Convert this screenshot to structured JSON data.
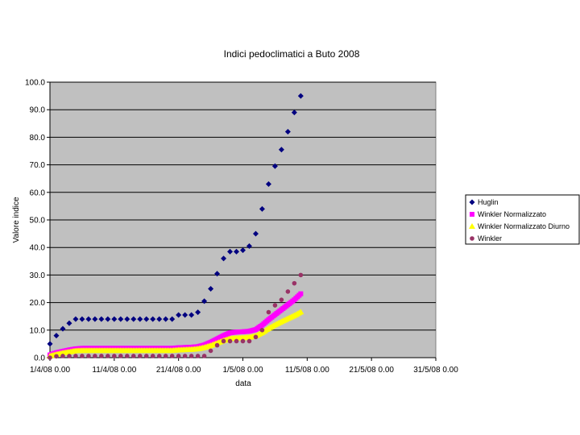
{
  "chart_data": {
    "type": "scatter",
    "title": "Indici pedoclimatici a Buto 2008",
    "xlabel": "data",
    "ylabel": "Valore indice",
    "ylim": [
      0,
      100
    ],
    "xlim": [
      "2008-04-01",
      "2008-05-31"
    ],
    "y_ticks": [
      "0.0",
      "10.0",
      "20.0",
      "30.0",
      "40.0",
      "50.0",
      "60.0",
      "70.0",
      "80.0",
      "90.0",
      "100.0"
    ],
    "x_ticks": [
      {
        "date": "2008-04-01",
        "label": "1/4/08 0.00"
      },
      {
        "date": "2008-04-11",
        "label": "11/4/08 0.00"
      },
      {
        "date": "2008-04-21",
        "label": "21/4/08 0.00"
      },
      {
        "date": "2008-05-01",
        "label": "1/5/08 0.00"
      },
      {
        "date": "2008-05-11",
        "label": "11/5/08 0.00"
      },
      {
        "date": "2008-05-21",
        "label": "21/5/08 0.00"
      },
      {
        "date": "2008-05-31",
        "label": "31/5/08 0.00"
      }
    ],
    "grid": true,
    "plot_background": "#c0c0c0",
    "legend_position": "right",
    "series": [
      {
        "name": "Huglin",
        "color": "#000080",
        "marker": "diamond",
        "points": [
          [
            "2008-04-01",
            5
          ],
          [
            "2008-04-02",
            8
          ],
          [
            "2008-04-03",
            10.5
          ],
          [
            "2008-04-04",
            12.5
          ],
          [
            "2008-04-05",
            14
          ],
          [
            "2008-04-06",
            14
          ],
          [
            "2008-04-07",
            14
          ],
          [
            "2008-04-08",
            14
          ],
          [
            "2008-04-09",
            14
          ],
          [
            "2008-04-10",
            14
          ],
          [
            "2008-04-11",
            14
          ],
          [
            "2008-04-12",
            14
          ],
          [
            "2008-04-13",
            14
          ],
          [
            "2008-04-14",
            14
          ],
          [
            "2008-04-15",
            14
          ],
          [
            "2008-04-16",
            14
          ],
          [
            "2008-04-17",
            14
          ],
          [
            "2008-04-18",
            14
          ],
          [
            "2008-04-19",
            14
          ],
          [
            "2008-04-20",
            14
          ],
          [
            "2008-04-21",
            15.5
          ],
          [
            "2008-04-22",
            15.5
          ],
          [
            "2008-04-23",
            15.5
          ],
          [
            "2008-04-24",
            16.5
          ],
          [
            "2008-04-25",
            20.5
          ],
          [
            "2008-04-26",
            25
          ],
          [
            "2008-04-27",
            30.5
          ],
          [
            "2008-04-28",
            36
          ],
          [
            "2008-04-29",
            38.5
          ],
          [
            "2008-04-30",
            38.5
          ],
          [
            "2008-05-01",
            39
          ],
          [
            "2008-05-02",
            40.5
          ],
          [
            "2008-05-03",
            45
          ],
          [
            "2008-05-04",
            54
          ],
          [
            "2008-05-05",
            63
          ],
          [
            "2008-05-06",
            69.5
          ],
          [
            "2008-05-07",
            75.5
          ],
          [
            "2008-05-08",
            82
          ],
          [
            "2008-05-09",
            89
          ],
          [
            "2008-05-10",
            95
          ]
        ]
      },
      {
        "name": "Winkler Normalizzato",
        "color": "#ff00ff",
        "marker": "square",
        "points": [
          [
            "2008-04-01",
            1
          ],
          [
            "2008-04-02",
            1.8
          ],
          [
            "2008-04-03",
            2.3
          ],
          [
            "2008-04-04",
            2.8
          ],
          [
            "2008-04-05",
            3.2
          ],
          [
            "2008-04-06",
            3.4
          ],
          [
            "2008-04-07",
            3.4
          ],
          [
            "2008-04-08",
            3.4
          ],
          [
            "2008-04-09",
            3.4
          ],
          [
            "2008-04-10",
            3.4
          ],
          [
            "2008-04-11",
            3.4
          ],
          [
            "2008-04-12",
            3.4
          ],
          [
            "2008-04-13",
            3.4
          ],
          [
            "2008-04-14",
            3.4
          ],
          [
            "2008-04-15",
            3.4
          ],
          [
            "2008-04-16",
            3.4
          ],
          [
            "2008-04-17",
            3.4
          ],
          [
            "2008-04-18",
            3.4
          ],
          [
            "2008-04-19",
            3.4
          ],
          [
            "2008-04-20",
            3.4
          ],
          [
            "2008-04-21",
            3.6
          ],
          [
            "2008-04-22",
            3.7
          ],
          [
            "2008-04-23",
            3.8
          ],
          [
            "2008-04-24",
            4
          ],
          [
            "2008-04-25",
            4.6
          ],
          [
            "2008-04-26",
            5.6
          ],
          [
            "2008-04-27",
            6.8
          ],
          [
            "2008-04-28",
            8
          ],
          [
            "2008-04-29",
            9
          ],
          [
            "2008-04-30",
            9.3
          ],
          [
            "2008-05-01",
            9.4
          ],
          [
            "2008-05-02",
            9.6
          ],
          [
            "2008-05-03",
            10.2
          ],
          [
            "2008-05-04",
            11.8
          ],
          [
            "2008-05-05",
            13.8
          ],
          [
            "2008-05-06",
            15.6
          ],
          [
            "2008-05-07",
            17.4
          ],
          [
            "2008-05-08",
            19.2
          ],
          [
            "2008-05-09",
            21
          ],
          [
            "2008-05-10",
            23.2
          ]
        ]
      },
      {
        "name": "Winkler Normalizzato Diurno",
        "color": "#ffff00",
        "marker": "triangle",
        "points": [
          [
            "2008-04-01",
            0.6
          ],
          [
            "2008-04-02",
            1.2
          ],
          [
            "2008-04-03",
            1.7
          ],
          [
            "2008-04-04",
            2.1
          ],
          [
            "2008-04-05",
            2.5
          ],
          [
            "2008-04-06",
            2.6
          ],
          [
            "2008-04-07",
            2.6
          ],
          [
            "2008-04-08",
            2.6
          ],
          [
            "2008-04-09",
            2.6
          ],
          [
            "2008-04-10",
            2.6
          ],
          [
            "2008-04-11",
            2.6
          ],
          [
            "2008-04-12",
            2.6
          ],
          [
            "2008-04-13",
            2.6
          ],
          [
            "2008-04-14",
            2.6
          ],
          [
            "2008-04-15",
            2.6
          ],
          [
            "2008-04-16",
            2.6
          ],
          [
            "2008-04-17",
            2.6
          ],
          [
            "2008-04-18",
            2.6
          ],
          [
            "2008-04-19",
            2.6
          ],
          [
            "2008-04-20",
            2.6
          ],
          [
            "2008-04-21",
            2.8
          ],
          [
            "2008-04-22",
            2.9
          ],
          [
            "2008-04-23",
            3
          ],
          [
            "2008-04-24",
            3.2
          ],
          [
            "2008-04-25",
            3.7
          ],
          [
            "2008-04-26",
            4.4
          ],
          [
            "2008-04-27",
            5.3
          ],
          [
            "2008-04-28",
            6.2
          ],
          [
            "2008-04-29",
            6.9
          ],
          [
            "2008-04-30",
            7.1
          ],
          [
            "2008-05-01",
            7.2
          ],
          [
            "2008-05-02",
            7.4
          ],
          [
            "2008-05-03",
            7.9
          ],
          [
            "2008-05-04",
            9.1
          ],
          [
            "2008-05-05",
            10.6
          ],
          [
            "2008-05-06",
            11.9
          ],
          [
            "2008-05-07",
            13.1
          ],
          [
            "2008-05-08",
            14.2
          ],
          [
            "2008-05-09",
            15.3
          ],
          [
            "2008-05-10",
            16.6
          ]
        ]
      },
      {
        "name": "Winkler",
        "color": "#993366",
        "marker": "circle",
        "points": [
          [
            "2008-04-01",
            0
          ],
          [
            "2008-04-02",
            0.5
          ],
          [
            "2008-04-03",
            0.6
          ],
          [
            "2008-04-04",
            0.6
          ],
          [
            "2008-04-05",
            0.6
          ],
          [
            "2008-04-06",
            0.6
          ],
          [
            "2008-04-07",
            0.6
          ],
          [
            "2008-04-08",
            0.6
          ],
          [
            "2008-04-09",
            0.6
          ],
          [
            "2008-04-10",
            0.6
          ],
          [
            "2008-04-11",
            0.6
          ],
          [
            "2008-04-12",
            0.6
          ],
          [
            "2008-04-13",
            0.6
          ],
          [
            "2008-04-14",
            0.6
          ],
          [
            "2008-04-15",
            0.6
          ],
          [
            "2008-04-16",
            0.6
          ],
          [
            "2008-04-17",
            0.6
          ],
          [
            "2008-04-18",
            0.6
          ],
          [
            "2008-04-19",
            0.6
          ],
          [
            "2008-04-20",
            0.6
          ],
          [
            "2008-04-21",
            0.6
          ],
          [
            "2008-04-22",
            0.6
          ],
          [
            "2008-04-23",
            0.6
          ],
          [
            "2008-04-24",
            0.6
          ],
          [
            "2008-04-25",
            0.6
          ],
          [
            "2008-04-26",
            2.5
          ],
          [
            "2008-04-27",
            4.5
          ],
          [
            "2008-04-28",
            6
          ],
          [
            "2008-04-29",
            6
          ],
          [
            "2008-04-30",
            6
          ],
          [
            "2008-05-01",
            6
          ],
          [
            "2008-05-02",
            6
          ],
          [
            "2008-05-03",
            7.5
          ],
          [
            "2008-05-04",
            10
          ],
          [
            "2008-05-05",
            16.5
          ],
          [
            "2008-05-06",
            19
          ],
          [
            "2008-05-07",
            21
          ],
          [
            "2008-05-08",
            24
          ],
          [
            "2008-05-09",
            27
          ],
          [
            "2008-05-10",
            30
          ]
        ]
      }
    ]
  }
}
